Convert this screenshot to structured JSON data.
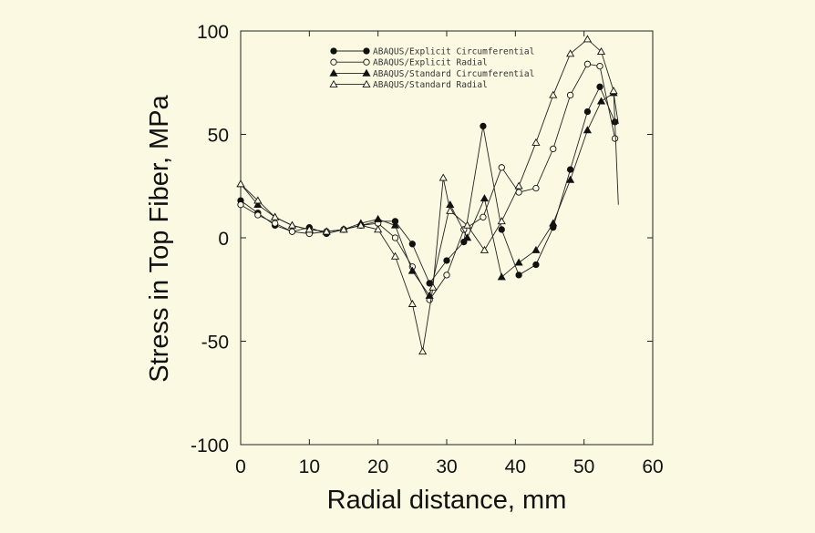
{
  "chart_data": {
    "type": "line",
    "xlabel": "Radial distance, mm",
    "ylabel": "Stress in Top Fiber, MPa",
    "xlim": [
      0,
      60
    ],
    "ylim": [
      -100,
      100
    ],
    "xticks": [
      0,
      10,
      20,
      30,
      40,
      50,
      60
    ],
    "yticks": [
      -100,
      -50,
      0,
      50,
      100
    ],
    "grid": false,
    "legend_position": "top-center",
    "series": [
      {
        "name": "ABAQUS/Explicit Circumferential",
        "marker": "filled-circle",
        "x": [
          0,
          2.5,
          5,
          7.5,
          10,
          12.5,
          15,
          17.5,
          20,
          22.5,
          25,
          27.5,
          30,
          32.5,
          35.3,
          38,
          40.5,
          43,
          45.5,
          48,
          50.5,
          52.3,
          54.5
        ],
        "y": [
          18,
          12,
          6,
          3,
          5,
          2,
          4,
          6,
          8,
          8,
          -3,
          -22,
          -11,
          -2,
          54,
          4,
          -18,
          -13,
          5,
          33,
          61,
          73,
          56
        ]
      },
      {
        "name": "ABAQUS/Explicit Radial",
        "marker": "open-circle",
        "x": [
          0,
          2.5,
          5,
          7.5,
          10,
          12.5,
          15,
          17.5,
          20,
          22.5,
          25,
          27.5,
          30,
          32.5,
          35.3,
          38,
          40.5,
          43,
          45.5,
          48,
          50.5,
          52.3,
          54.5
        ],
        "y": [
          16,
          11,
          7,
          3,
          2,
          3,
          4,
          6,
          7,
          0,
          -14,
          -30,
          -18,
          4,
          10,
          34,
          22,
          24,
          43,
          69,
          84,
          83,
          48
        ]
      },
      {
        "name": "ABAQUS/Standard Circumferential",
        "marker": "filled-triangle",
        "x": [
          0,
          2.5,
          5,
          7.5,
          10,
          12.5,
          15,
          17.5,
          20,
          22.5,
          25,
          27.5,
          30.5,
          33,
          35.5,
          38,
          40.5,
          43,
          45.5,
          48,
          50.5,
          52.5,
          54.3,
          55
        ],
        "y": [
          26,
          16,
          10,
          6,
          4,
          3,
          4,
          7,
          9,
          6,
          -16,
          -28,
          16,
          0,
          19,
          -19,
          -12,
          -6,
          7,
          28,
          52,
          66,
          70,
          55
        ]
      },
      {
        "name": "ABAQUS/Standard Radial",
        "marker": "open-triangle",
        "x": [
          0,
          2.5,
          5,
          7.5,
          10,
          12.5,
          15,
          17.5,
          20,
          22.5,
          25,
          26.5,
          28,
          29.5,
          30.5,
          33,
          35.5,
          38,
          40.5,
          43,
          45.5,
          48,
          50.5,
          52.5,
          54.3,
          55
        ],
        "y": [
          26,
          18,
          10,
          6,
          4,
          3,
          4,
          6,
          4,
          -9,
          -32,
          -55,
          -24,
          29,
          13,
          6,
          -6,
          8,
          25,
          46,
          69,
          89,
          96,
          90,
          71,
          16
        ]
      }
    ]
  }
}
